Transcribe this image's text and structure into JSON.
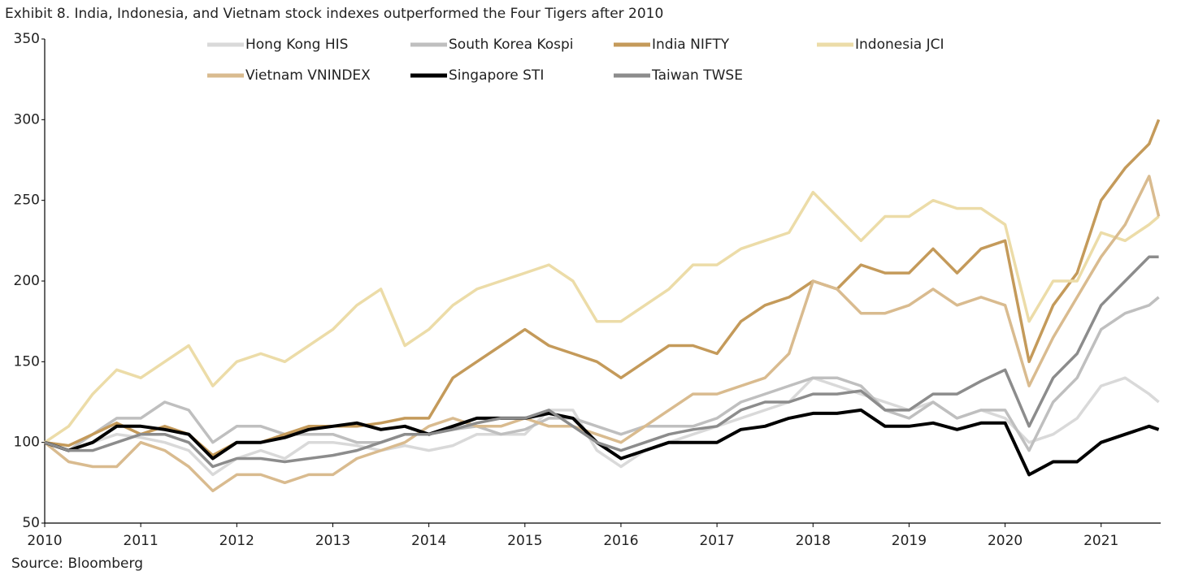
{
  "chart_data": {
    "type": "line",
    "title": "Exhibit 8. India, Indonesia, and Vietnam stock indexes outperformed the Four Tigers after 2010",
    "source": "Source: Bloomberg",
    "x": [
      2010,
      2010.25,
      2010.5,
      2010.75,
      2011,
      2011.25,
      2011.5,
      2011.75,
      2012,
      2012.25,
      2012.5,
      2012.75,
      2013,
      2013.25,
      2013.5,
      2013.75,
      2014,
      2014.25,
      2014.5,
      2014.75,
      2015,
      2015.25,
      2015.5,
      2015.75,
      2016,
      2016.25,
      2016.5,
      2016.75,
      2017,
      2017.25,
      2017.5,
      2017.75,
      2018,
      2018.25,
      2018.5,
      2018.75,
      2019,
      2019.25,
      2019.5,
      2019.75,
      2020,
      2020.25,
      2020.5,
      2020.75,
      2021,
      2021.25,
      2021.5,
      2021.6
    ],
    "xlim": [
      2010,
      2021.62
    ],
    "xticks": [
      2010,
      2011,
      2012,
      2013,
      2014,
      2015,
      2016,
      2017,
      2018,
      2019,
      2020,
      2021
    ],
    "ylim": [
      50,
      350
    ],
    "yticks": [
      50,
      100,
      150,
      200,
      250,
      300,
      350
    ],
    "legend": "top",
    "series": [
      {
        "name": "Hong Kong HIS",
        "color": "#d9d9d9",
        "values": [
          100,
          95,
          100,
          105,
          103,
          100,
          95,
          80,
          90,
          95,
          90,
          100,
          100,
          98,
          95,
          98,
          95,
          98,
          105,
          105,
          105,
          120,
          120,
          95,
          85,
          95,
          100,
          105,
          110,
          115,
          120,
          125,
          140,
          135,
          130,
          125,
          120,
          125,
          115,
          120,
          115,
          100,
          105,
          115,
          135,
          140,
          130,
          125
        ]
      },
      {
        "name": "South Korea Kospi",
        "color": "#bfbfbf",
        "values": [
          100,
          95,
          105,
          115,
          115,
          125,
          120,
          100,
          110,
          110,
          105,
          105,
          105,
          100,
          100,
          105,
          105,
          108,
          110,
          105,
          108,
          115,
          115,
          110,
          105,
          110,
          110,
          110,
          115,
          125,
          130,
          135,
          140,
          140,
          135,
          120,
          115,
          125,
          115,
          120,
          120,
          95,
          125,
          140,
          170,
          180,
          185,
          190
        ]
      },
      {
        "name": "India NIFTY",
        "color": "#c49a5a",
        "values": [
          100,
          98,
          105,
          112,
          105,
          110,
          105,
          92,
          100,
          100,
          105,
          110,
          110,
          110,
          112,
          115,
          115,
          140,
          150,
          160,
          170,
          160,
          155,
          150,
          140,
          150,
          160,
          160,
          155,
          175,
          185,
          190,
          200,
          195,
          210,
          205,
          205,
          220,
          205,
          220,
          225,
          150,
          185,
          205,
          250,
          270,
          285,
          300
        ]
      },
      {
        "name": "Indonesia JCI",
        "color": "#ecdca8",
        "values": [
          100,
          110,
          130,
          145,
          140,
          150,
          160,
          135,
          150,
          155,
          150,
          160,
          170,
          185,
          195,
          160,
          170,
          185,
          195,
          200,
          205,
          210,
          200,
          175,
          175,
          185,
          195,
          210,
          210,
          220,
          225,
          230,
          255,
          240,
          225,
          240,
          240,
          250,
          245,
          245,
          235,
          175,
          200,
          200,
          230,
          225,
          235,
          240
        ]
      },
      {
        "name": "Vietnam VNINDEX",
        "color": "#d9bb8f",
        "values": [
          100,
          88,
          85,
          85,
          100,
          95,
          85,
          70,
          80,
          80,
          75,
          80,
          80,
          90,
          95,
          100,
          110,
          115,
          110,
          110,
          115,
          110,
          110,
          105,
          100,
          110,
          120,
          130,
          130,
          135,
          140,
          155,
          200,
          195,
          180,
          180,
          185,
          195,
          185,
          190,
          185,
          135,
          165,
          190,
          215,
          235,
          265,
          240
        ]
      },
      {
        "name": "Singapore STI",
        "color": "#000000",
        "values": [
          100,
          95,
          100,
          110,
          110,
          108,
          105,
          90,
          100,
          100,
          103,
          108,
          110,
          112,
          108,
          110,
          105,
          110,
          115,
          115,
          115,
          118,
          115,
          100,
          90,
          95,
          100,
          100,
          100,
          108,
          110,
          115,
          118,
          118,
          120,
          110,
          110,
          112,
          108,
          112,
          112,
          80,
          88,
          88,
          100,
          105,
          110,
          108
        ]
      },
      {
        "name": "Taiwan TWSE",
        "color": "#8c8c8c",
        "values": [
          100,
          95,
          95,
          100,
          105,
          105,
          100,
          85,
          90,
          90,
          88,
          90,
          92,
          95,
          100,
          105,
          105,
          108,
          112,
          115,
          115,
          120,
          110,
          100,
          95,
          100,
          105,
          108,
          110,
          120,
          125,
          125,
          130,
          130,
          132,
          120,
          120,
          130,
          130,
          138,
          145,
          110,
          140,
          155,
          185,
          200,
          215,
          215
        ]
      }
    ]
  }
}
